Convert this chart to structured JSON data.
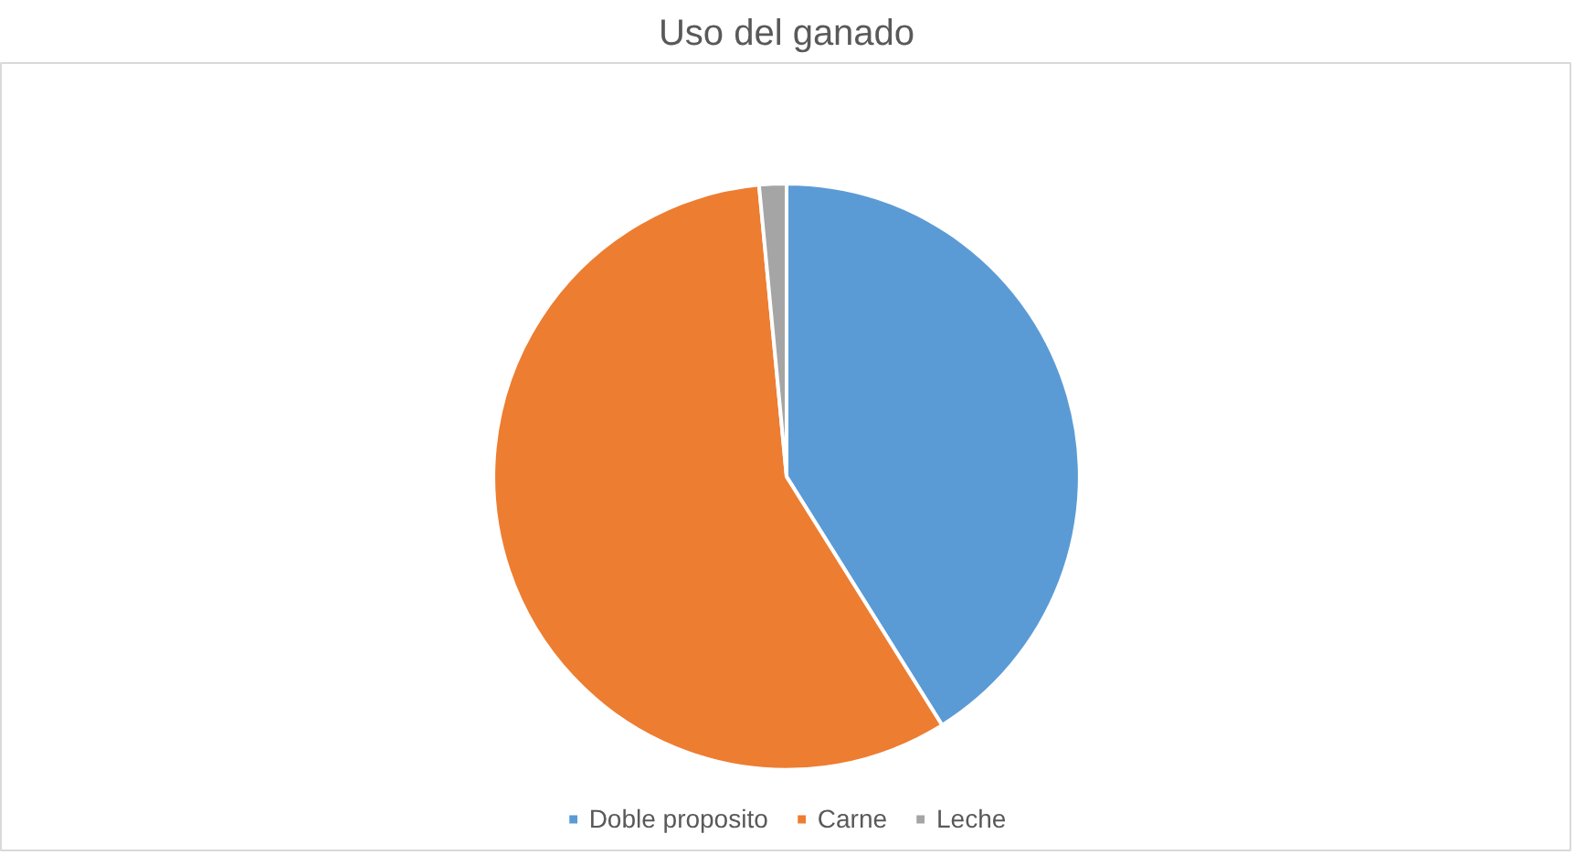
{
  "chart_data": {
    "type": "pie",
    "title": "Uso del ganado",
    "categories": [
      "Doble proposito",
      "Carne",
      "Leche"
    ],
    "values": [
      41.1,
      57.4,
      1.5
    ],
    "colors": [
      "#5b9bd5",
      "#ed7d31",
      "#a5a5a5"
    ],
    "legend": "bottom"
  }
}
